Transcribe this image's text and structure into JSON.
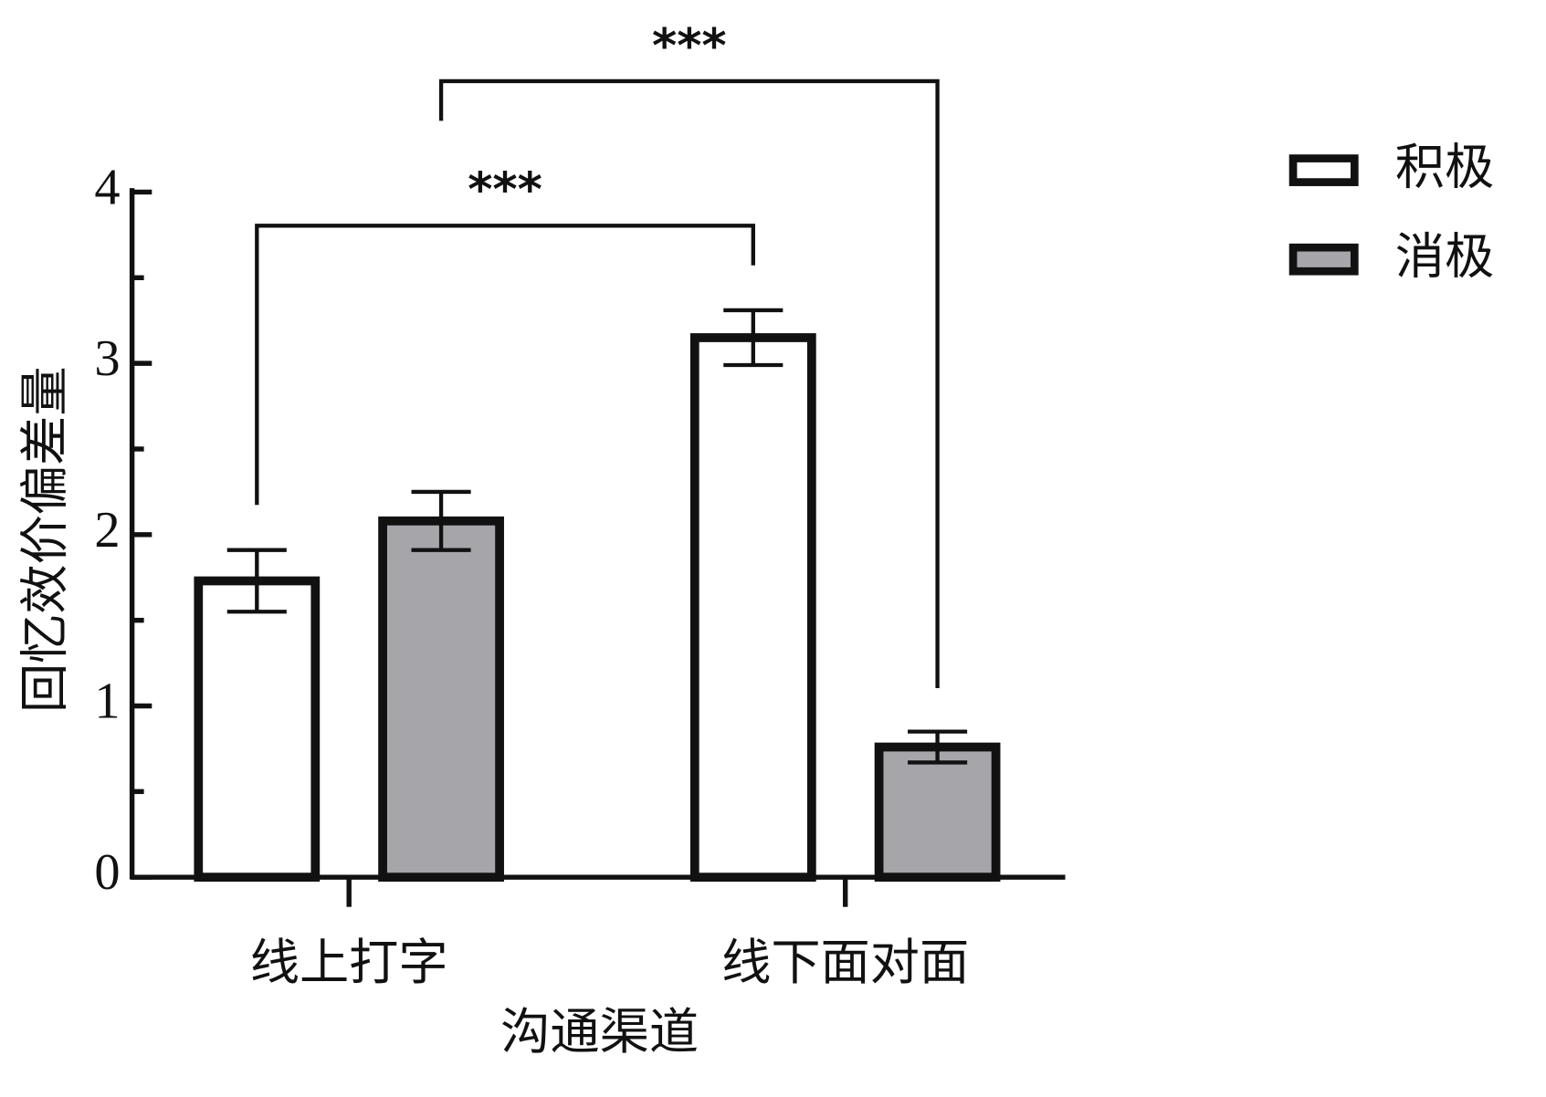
{
  "chart_data": {
    "type": "bar",
    "x_label": "沟通渠道",
    "y_label": "回忆效价偏差量",
    "categories": [
      "线上打字",
      "线下面对面"
    ],
    "series": [
      {
        "name": "积极",
        "color": "#ffffff",
        "values": [
          1.73,
          3.15
        ],
        "errors": [
          0.18,
          0.16
        ]
      },
      {
        "name": "消极",
        "color": "#a6a6aa",
        "values": [
          2.08,
          0.76
        ],
        "errors": [
          0.17,
          0.09
        ]
      }
    ],
    "ylim": [
      0,
      4
    ],
    "yticks": [
      0,
      1,
      2,
      3,
      4
    ],
    "annotations": [
      {
        "text": "***"
      },
      {
        "text": "***"
      }
    ],
    "legend": "upper right"
  }
}
